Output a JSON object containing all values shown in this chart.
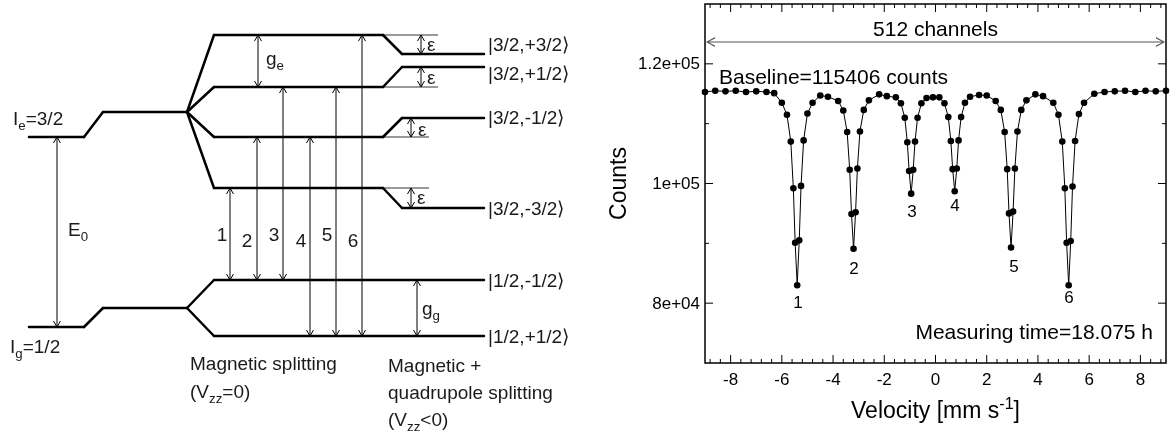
{
  "chart_data": [
    {
      "type": "other",
      "annotations": [
        "I$_{e}$=3/2",
        "I$_{g}$=1/2",
        "E$_{0}$",
        "g$_{e}$",
        "g$_{g}$",
        "ε",
        "ε",
        "ε",
        "ε",
        "1",
        "2",
        "3",
        "4",
        "5",
        "6",
        "|3/2,+3/2⟩",
        "|3/2,+1/2⟩",
        "|3/2,-1/2⟩",
        "|3/2,-3/2⟩",
        "|1/2,-1/2⟩",
        "|1/2,+1/2⟩",
        "Magnetic splitting",
        "(V$_{zz}$=0)",
        "Magnetic +",
        "quadrupole splitting",
        "(V$_{zz}$<0)"
      ]
    },
    {
      "type": "line",
      "xlabel": "Velocity [mm s$^{-1}$]",
      "ylabel": "Counts",
      "marker": "circle",
      "line_style": "solid",
      "grid": false,
      "x": [
        -9,
        -8.6,
        -8.2,
        -7.8,
        -7.4,
        -7,
        -6.6,
        -6.3,
        -6,
        -5.8,
        -5.65,
        -5.55,
        -5.48,
        -5.4,
        -5.32,
        -5.25,
        -5.15,
        -5,
        -4.8,
        -4.5,
        -4.2,
        -3.8,
        -3.6,
        -3.45,
        -3.35,
        -3.28,
        -3.2,
        -3.12,
        -3.05,
        -2.95,
        -2.8,
        -2.6,
        -2.2,
        -1.9,
        -1.55,
        -1.35,
        -1.2,
        -1.1,
        -1.03,
        -0.95,
        -0.87,
        -0.8,
        -0.7,
        -0.55,
        -0.35,
        -0.1,
        0.15,
        0.35,
        0.5,
        0.6,
        0.67,
        0.75,
        0.83,
        0.9,
        1,
        1.15,
        1.35,
        1.7,
        2,
        2.35,
        2.55,
        2.7,
        2.8,
        2.87,
        2.95,
        3.03,
        3.1,
        3.2,
        3.35,
        3.55,
        3.9,
        4.2,
        4.6,
        4.8,
        4.95,
        5.05,
        5.12,
        5.2,
        5.28,
        5.35,
        5.45,
        5.6,
        5.8,
        6.2,
        6.6,
        7,
        7.4,
        7.8,
        8.2,
        8.6,
        9
      ],
      "series": [
        {
          "color": "#000000",
          "values": [
            115300,
            115500,
            115400,
            115500,
            115300,
            115400,
            115300,
            115100,
            113500,
            111500,
            107000,
            99200,
            90100,
            83000,
            90500,
            99600,
            107200,
            111700,
            113500,
            114700,
            114500,
            113800,
            112200,
            108600,
            102300,
            94900,
            89100,
            95200,
            102500,
            108700,
            112300,
            113900,
            114900,
            114600,
            114400,
            113400,
            111000,
            106900,
            102100,
            98300,
            102300,
            107000,
            111000,
            113400,
            114300,
            114400,
            114400,
            113400,
            111100,
            107100,
            102400,
            98700,
            102500,
            107200,
            111100,
            113500,
            114500,
            114800,
            114700,
            113800,
            112300,
            108600,
            102400,
            95000,
            89300,
            95300,
            102500,
            108700,
            112300,
            113900,
            114900,
            114600,
            113500,
            111500,
            107000,
            99200,
            90100,
            83000,
            90400,
            99500,
            107100,
            111600,
            113500,
            115000,
            115300,
            115400,
            115500,
            115300,
            115500,
            115400,
            115500
          ]
        }
      ],
      "xlim": [
        -9,
        9
      ],
      "xticks": [
        {
          "value": -8.8,
          "label": null
        },
        {
          "value": -8.4,
          "label": null
        },
        -8,
        {
          "value": -7.6,
          "label": null
        },
        {
          "value": -7.2,
          "label": null
        },
        {
          "value": -6.8,
          "label": null
        },
        {
          "value": -6.4,
          "label": null
        },
        -6,
        {
          "value": -5.6,
          "label": null
        },
        {
          "value": -5.2,
          "label": null
        },
        {
          "value": -4.8,
          "label": null
        },
        {
          "value": -4.4,
          "label": null
        },
        -4,
        {
          "value": -3.6,
          "label": null
        },
        {
          "value": -3.2,
          "label": null
        },
        {
          "value": -2.8,
          "label": null
        },
        {
          "value": -2.4,
          "label": null
        },
        -2,
        {
          "value": -1.6,
          "label": null
        },
        {
          "value": -1.2,
          "label": null
        },
        {
          "value": -0.8,
          "label": null
        },
        {
          "value": -0.4,
          "label": null
        },
        0,
        {
          "value": 0.4,
          "label": null
        },
        {
          "value": 0.8,
          "label": null
        },
        {
          "value": 1.2,
          "label": null
        },
        {
          "value": 1.6,
          "label": null
        },
        2,
        {
          "value": 2.4,
          "label": null
        },
        {
          "value": 2.8,
          "label": null
        },
        {
          "value": 3.2,
          "label": null
        },
        {
          "value": 3.6,
          "label": null
        },
        4,
        {
          "value": 4.4,
          "label": null
        },
        {
          "value": 4.8,
          "label": null
        },
        {
          "value": 5.2,
          "label": null
        },
        {
          "value": 5.6,
          "label": null
        },
        6,
        {
          "value": 6.4,
          "label": null
        },
        {
          "value": 6.8,
          "label": null
        },
        {
          "value": 7.2,
          "label": null
        },
        {
          "value": 7.6,
          "label": null
        },
        8,
        {
          "value": 8.4,
          "label": null
        },
        {
          "value": 8.8,
          "label": null
        }
      ],
      "ylim": [
        70000,
        130000
      ],
      "yticks": [
        {
          "value": 80000,
          "label": "8e+04"
        },
        {
          "value": 90000,
          "label": null
        },
        {
          "value": 100000,
          "label": "1e+05"
        },
        {
          "value": 110000,
          "label": null
        },
        {
          "value": 120000,
          "label": "1.2e+05"
        }
      ],
      "annotations": [
        "512 channels",
        "Baseline=115406 counts",
        "Measuring time=18.075 h",
        "1",
        "2",
        "3",
        "4",
        "5",
        "6"
      ]
    }
  ]
}
